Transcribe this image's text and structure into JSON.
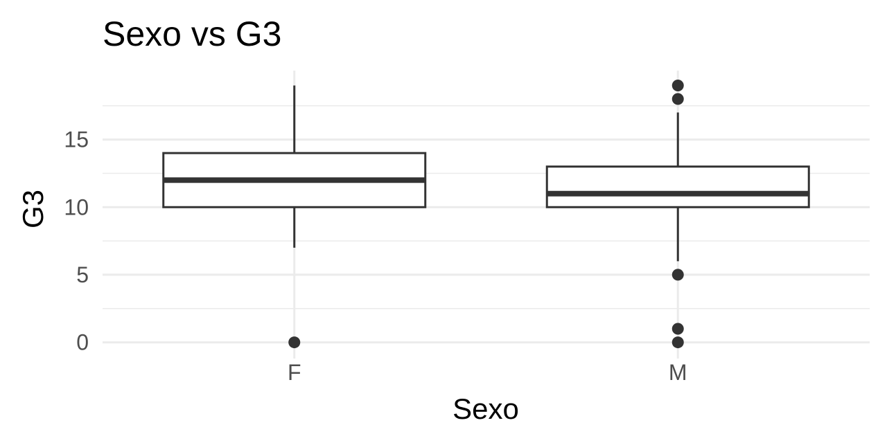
{
  "chart_data": {
    "type": "box",
    "title": "Sexo vs  G3",
    "xlabel": "Sexo",
    "ylabel": "G3",
    "ylim": [
      -1.2,
      20.1
    ],
    "y_ticks": [
      0,
      5,
      10,
      15
    ],
    "y_tick_labels": [
      "0",
      "5",
      "10",
      "15"
    ],
    "grid": true,
    "categories": [
      "F",
      "M"
    ],
    "boxes": [
      {
        "category": "F",
        "whisker_low": 7,
        "q1": 10,
        "median": 12,
        "q3": 14,
        "whisker_high": 19,
        "outliers": [
          0
        ]
      },
      {
        "category": "M",
        "whisker_low": 6,
        "q1": 10,
        "median": 11,
        "q3": 13,
        "whisker_high": 17,
        "outliers": [
          19,
          18,
          5,
          1,
          0
        ]
      }
    ],
    "colors": {
      "box_stroke": "#333333",
      "grid": "#ebebeb",
      "tick_text": "#4d4d4d",
      "background": "#ffffff"
    }
  }
}
